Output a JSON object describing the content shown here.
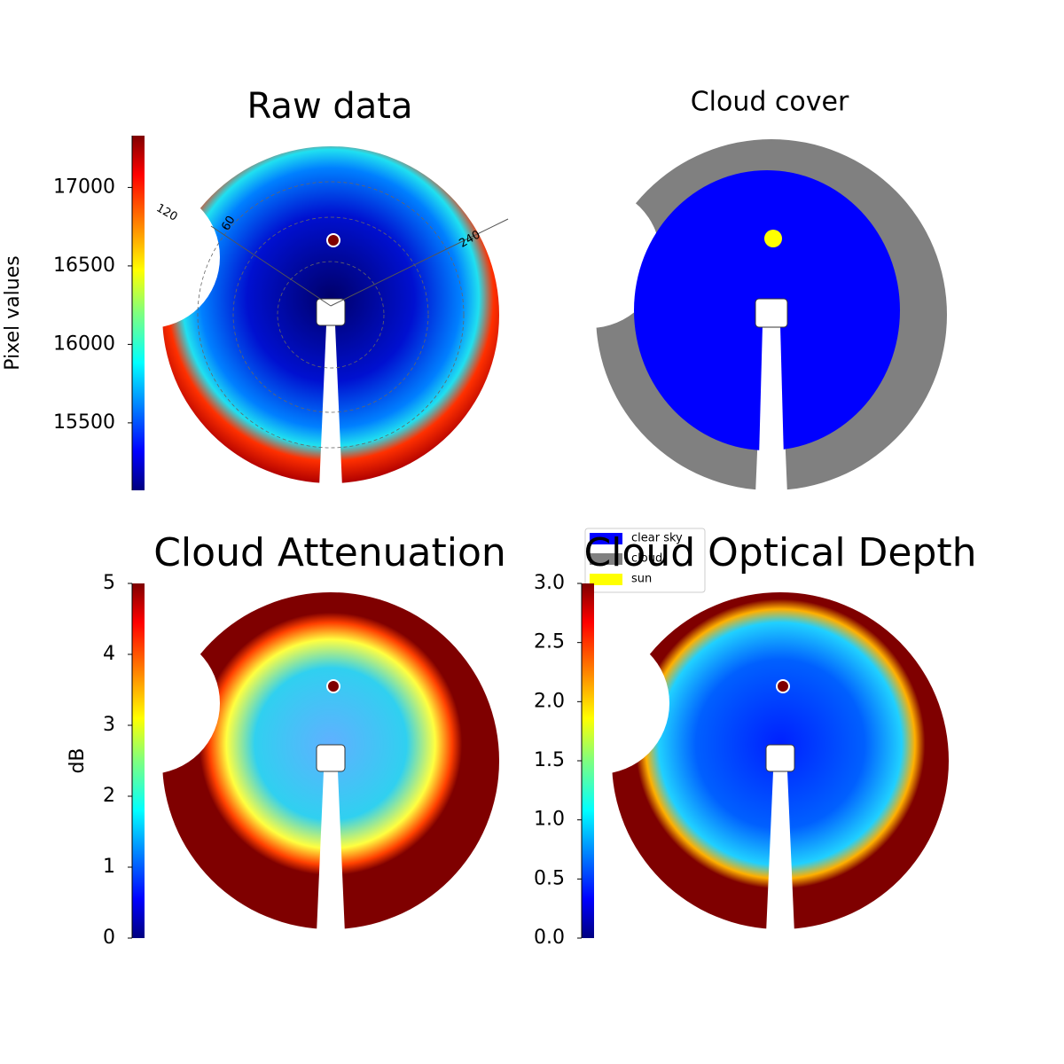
{
  "chart_data": [
    {
      "type": "image",
      "title": "Raw data",
      "colorbar_label": "Pixel values",
      "colormap": "jet",
      "ylim": [
        15070,
        17330
      ],
      "yticks": [
        15500,
        16000,
        16500,
        17000
      ],
      "annotations": [
        "120",
        "60",
        "240"
      ]
    },
    {
      "type": "classification",
      "title": "Cloud cover",
      "categories": [
        "clear sky",
        "cloud",
        "sun"
      ],
      "colors": [
        "#0000ff",
        "#808080",
        "#ffff00"
      ]
    },
    {
      "type": "image",
      "title": "Cloud Attenuation",
      "colorbar_label": "dB",
      "colormap": "jet",
      "ylim": [
        0,
        5
      ],
      "yticks": [
        0,
        1,
        2,
        3,
        4,
        5
      ]
    },
    {
      "type": "image",
      "title": "Cloud Optical Depth",
      "colormap": "jet",
      "ylim": [
        0,
        3
      ],
      "yticks": [
        {
          "value": 0,
          "label": "0.0"
        },
        {
          "value": 0.5,
          "label": "0.5"
        },
        {
          "value": 1,
          "label": "1.0"
        },
        {
          "value": 1.5,
          "label": "1.5"
        },
        {
          "value": 2,
          "label": "2.0"
        },
        {
          "value": 2.5,
          "label": "2.5"
        },
        {
          "value": 3,
          "label": "3.0"
        }
      ]
    }
  ]
}
